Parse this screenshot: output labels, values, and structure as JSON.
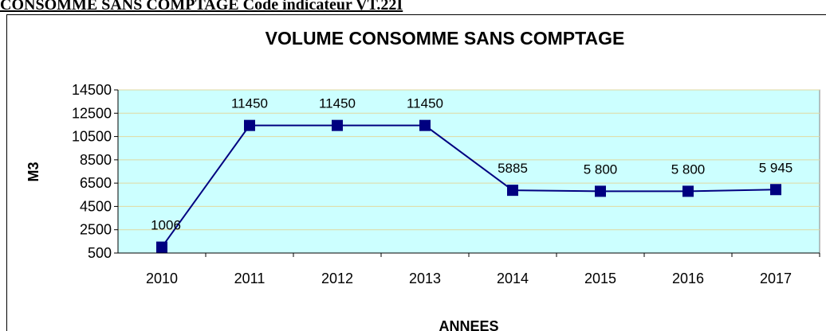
{
  "header": {
    "text": "CONSOMME SANS COMPTAGE Code indicateur VT.22I"
  },
  "chart_data": {
    "type": "line",
    "title": "VOLUME CONSOMME SANS COMPTAGE",
    "x_label": "ANNEES",
    "y_label": "M3",
    "categories": [
      "2010",
      "2011",
      "2012",
      "2013",
      "2014",
      "2015",
      "2016",
      "2017"
    ],
    "series": [
      {
        "name": "VOLUME CONSOMME SANS COMPTAGE",
        "color": "#000080",
        "values": [
          1006,
          11450,
          11450,
          11450,
          5885,
          5800,
          5800,
          5945
        ],
        "value_labels": [
          "1006",
          "11450",
          "11450",
          "11450",
          "5885",
          "5 800",
          "5 800",
          "5 945"
        ]
      }
    ],
    "ylim": [
      500,
      14500
    ],
    "yticks": [
      500,
      2500,
      4500,
      6500,
      8500,
      10500,
      12500,
      14500
    ],
    "grid": true,
    "plot_background": "#ccffff"
  }
}
